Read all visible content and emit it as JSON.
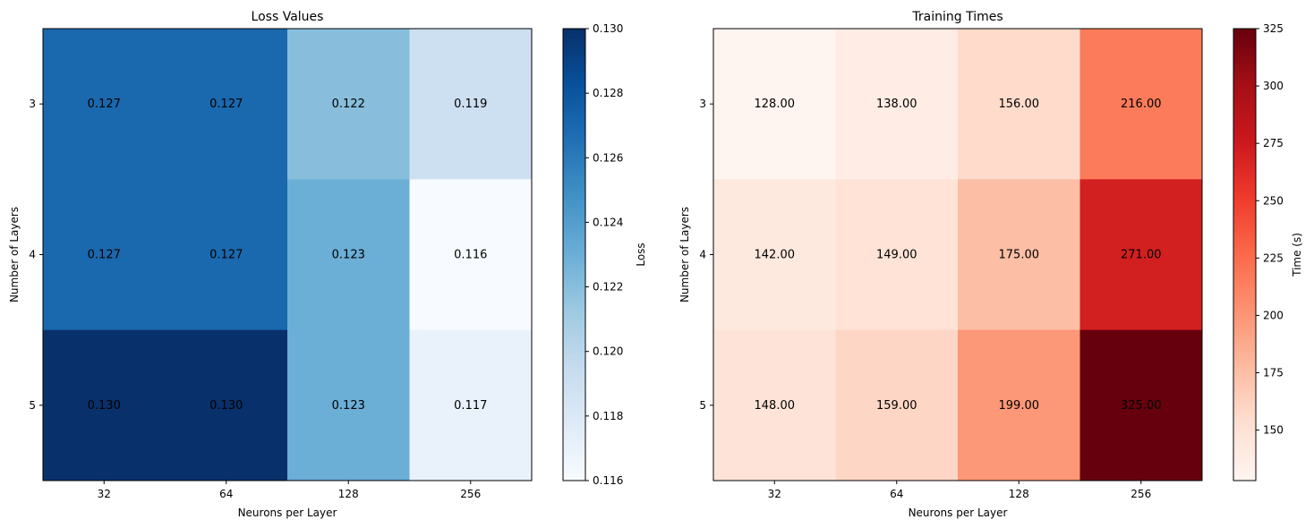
{
  "chart_data": [
    {
      "type": "heatmap",
      "title": "Loss Values",
      "xlabel": "Neurons per Layer",
      "ylabel": "Number of Layers",
      "x_categories": [
        "32",
        "64",
        "128",
        "256"
      ],
      "y_categories": [
        "3",
        "4",
        "5"
      ],
      "values": [
        [
          0.127,
          0.127,
          0.122,
          0.119
        ],
        [
          0.127,
          0.127,
          0.123,
          0.116
        ],
        [
          0.13,
          0.13,
          0.123,
          0.117
        ]
      ],
      "value_format": 3,
      "colormap": "Blues",
      "colorbar": {
        "label": "Loss",
        "range": [
          0.116,
          0.13
        ],
        "ticks": [
          0.116,
          0.118,
          0.12,
          0.122,
          0.124,
          0.126,
          0.128,
          0.13
        ],
        "tick_labels": [
          "0.116",
          "0.118",
          "0.120",
          "0.122",
          "0.124",
          "0.126",
          "0.128",
          "0.130"
        ]
      }
    },
    {
      "type": "heatmap",
      "title": "Training Times",
      "xlabel": "Neurons per Layer",
      "ylabel": "Number of Layers",
      "x_categories": [
        "32",
        "64",
        "128",
        "256"
      ],
      "y_categories": [
        "3",
        "4",
        "5"
      ],
      "values": [
        [
          128,
          138,
          156,
          216
        ],
        [
          142,
          149,
          175,
          271
        ],
        [
          148,
          159,
          199,
          325
        ]
      ],
      "value_format": 2,
      "colormap": "Reds",
      "colorbar": {
        "label": "Time (s)",
        "range": [
          128,
          325
        ],
        "ticks": [
          150,
          175,
          200,
          225,
          250,
          275,
          300,
          325
        ],
        "tick_labels": [
          "150",
          "175",
          "200",
          "225",
          "250",
          "275",
          "300",
          "325"
        ]
      }
    }
  ]
}
